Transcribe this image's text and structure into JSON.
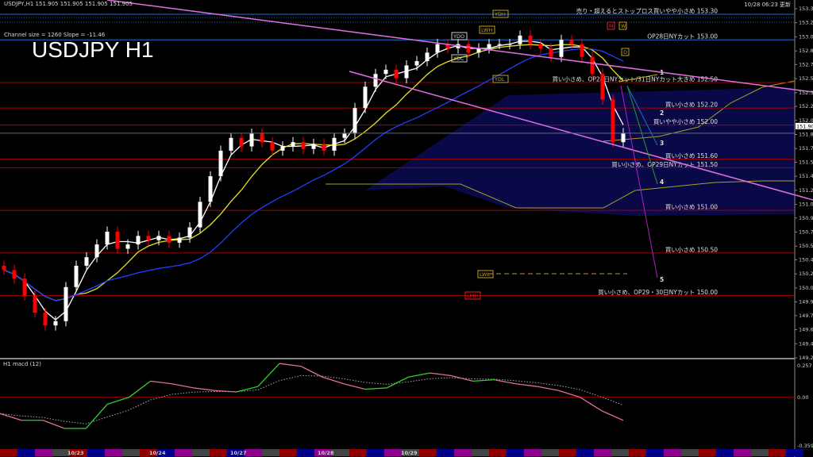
{
  "header": {
    "symbol_info": "USDJPY,H1  151.905 151.905 151.905 151.905",
    "channel_info": "Channel size = 1260 Slope = -11.46",
    "big_title": "USDJPY H1",
    "timestamp": "10/28 06:23 更新"
  },
  "macd_panel": {
    "title": "H1  macd (12)"
  },
  "chart_data": {
    "type": "candlestick",
    "symbol": "USDJPY",
    "timeframe": "H1",
    "current_price": "151.905",
    "y_ticks": [
      "153.365",
      "153.200",
      "153.035",
      "152.870",
      "152.710",
      "152.545",
      "152.380",
      "152.220",
      "152.055",
      "151.890",
      "151.725",
      "151.565",
      "151.400",
      "151.235",
      "151.070",
      "150.910",
      "150.745",
      "150.580",
      "150.420",
      "150.255",
      "150.090",
      "149.925",
      "149.765",
      "149.600",
      "149.435",
      "149.270"
    ],
    "ylim": [
      149.27,
      153.365
    ],
    "closes": [
      150.3,
      150.2,
      150.0,
      149.8,
      149.65,
      149.7,
      150.1,
      150.35,
      150.45,
      150.6,
      150.75,
      150.55,
      150.6,
      150.7,
      150.65,
      150.7,
      150.62,
      150.68,
      150.8,
      151.1,
      151.4,
      151.7,
      151.85,
      151.75,
      151.9,
      151.8,
      151.7,
      151.75,
      151.8,
      151.72,
      151.78,
      151.7,
      151.85,
      151.9,
      152.2,
      152.45,
      152.6,
      152.65,
      152.55,
      152.7,
      152.75,
      152.85,
      152.95,
      152.9,
      152.95,
      152.85,
      152.9,
      152.95,
      152.95,
      152.95,
      153.05,
      152.95,
      152.9,
      152.8,
      153.0,
      152.95,
      152.8,
      152.6,
      152.3,
      151.8,
      151.905
    ],
    "x_dates": [
      "10/23",
      "10/24",
      "10/27",
      "10/28",
      "10/29"
    ],
    "levels": [
      {
        "price": 153.3,
        "label": "売り・超えるとストップロス買いやや小さめ 153.30",
        "color": "#1e6fd0"
      },
      {
        "price": 153.0,
        "label": "OP28日NYカット 153.00",
        "color": "#1e6fd0"
      },
      {
        "price": 152.5,
        "label": "買い小さめ、OP28日NYカット/31日NYカット大きめ 152.50",
        "color": "#a00000"
      },
      {
        "price": 152.2,
        "label": "買い小さめ 152.20",
        "color": "#a00000"
      },
      {
        "price": 152.0,
        "label": "買いやや小さめ 152.00",
        "color": "#a00000"
      },
      {
        "price": 151.6,
        "label": "買い小さめ 151.60",
        "color": "#a00000"
      },
      {
        "price": 151.5,
        "label": "買い小さめ、OP29日NYカット 151.50",
        "color": "#a00000"
      },
      {
        "price": 151.0,
        "label": "買い小さめ 151.00",
        "color": "#a00000"
      },
      {
        "price": 150.5,
        "label": "買い小さめ 150.50",
        "color": "#a00000"
      },
      {
        "price": 150.0,
        "label": "買い小さめ、OP29・30日NYカット 150.00",
        "color": "#a00000"
      }
    ],
    "markers": [
      "YDH",
      "YDO",
      "LWH",
      "YDC",
      "YDL",
      "D",
      "M",
      "W",
      "LWL",
      "LMH"
    ],
    "wave_numbers": [
      "1",
      "2",
      "3",
      "4",
      "5"
    ],
    "macd": {
      "name": "macd (12)",
      "y_ticks": [
        "0.257",
        "0.00",
        "-0.359"
      ],
      "ylim": [
        -0.359,
        0.257
      ],
      "values": [
        -0.12,
        -0.17,
        -0.17,
        -0.23,
        -0.23,
        -0.05,
        0.0,
        0.12,
        0.1,
        0.07,
        0.05,
        0.04,
        0.08,
        0.25,
        0.23,
        0.15,
        0.1,
        0.06,
        0.07,
        0.15,
        0.18,
        0.16,
        0.12,
        0.13,
        0.1,
        0.08,
        0.05,
        0.0,
        -0.1,
        -0.17
      ]
    },
    "colors": {
      "up": "#ffffff",
      "down": "#ff0000",
      "ma_fast": "#ffffff",
      "ma_mid": "#e8e020",
      "ma_slow": "#2040ff",
      "trend": "#e070e0",
      "macd_up": "#30d030",
      "macd_down": "#e07090"
    }
  }
}
